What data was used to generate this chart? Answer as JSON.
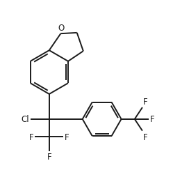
{
  "bg_color": "#ffffff",
  "line_color": "#1a1a1a",
  "line_width": 1.4,
  "fig_width": 2.72,
  "fig_height": 2.55,
  "dpi": 100,
  "xlim": [
    0,
    10
  ],
  "ylim": [
    0,
    9.375
  ]
}
